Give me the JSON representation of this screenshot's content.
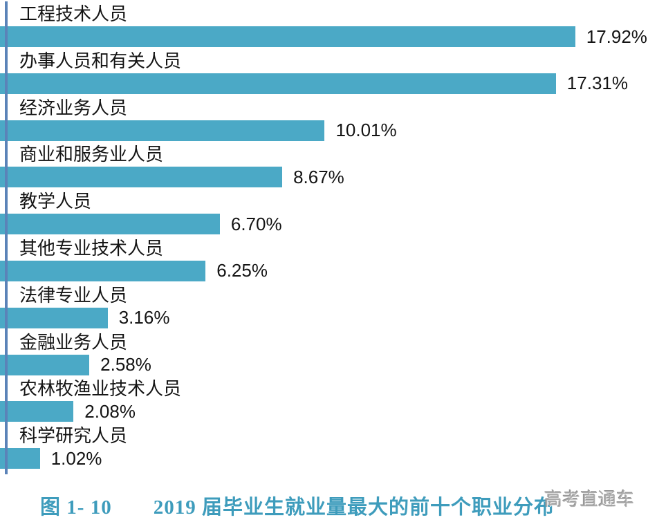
{
  "chart_data": {
    "type": "bar",
    "orientation": "horizontal",
    "title": "图 1- 10　2019 届毕业生就业量最大的前十个职业分布",
    "xlabel": "",
    "ylabel": "",
    "grid": false,
    "legend": false,
    "value_axis_visible": false,
    "xlim": [
      0,
      20
    ],
    "categories": [
      "工程技术人员",
      "办事人员和有关人员",
      "经济业务人员",
      "商业和服务业人员",
      "教学人员",
      "其他专业技术人员",
      "法律专业人员",
      "金融业务人员",
      "农林牧渔业技术人员",
      "科学研究人员"
    ],
    "values": [
      17.92,
      17.31,
      10.01,
      8.67,
      6.7,
      6.25,
      3.16,
      2.58,
      2.08,
      1.02
    ],
    "value_labels": [
      "17.92%",
      "17.31%",
      "10.01%",
      "8.67%",
      "6.70%",
      "6.25%",
      "3.16%",
      "2.58%",
      "2.08%",
      "1.02%"
    ],
    "bar_color": "#4BA9C6",
    "axis_line_color": "#5B83B8",
    "label_color": "#141414"
  },
  "caption": {
    "text": "图 1- 10　　2019 届毕业生就业量最大的前十个职业分布",
    "color": "#3E9CBC"
  },
  "watermark": {
    "text": "高考直通车",
    "color": "#ABABAB"
  }
}
